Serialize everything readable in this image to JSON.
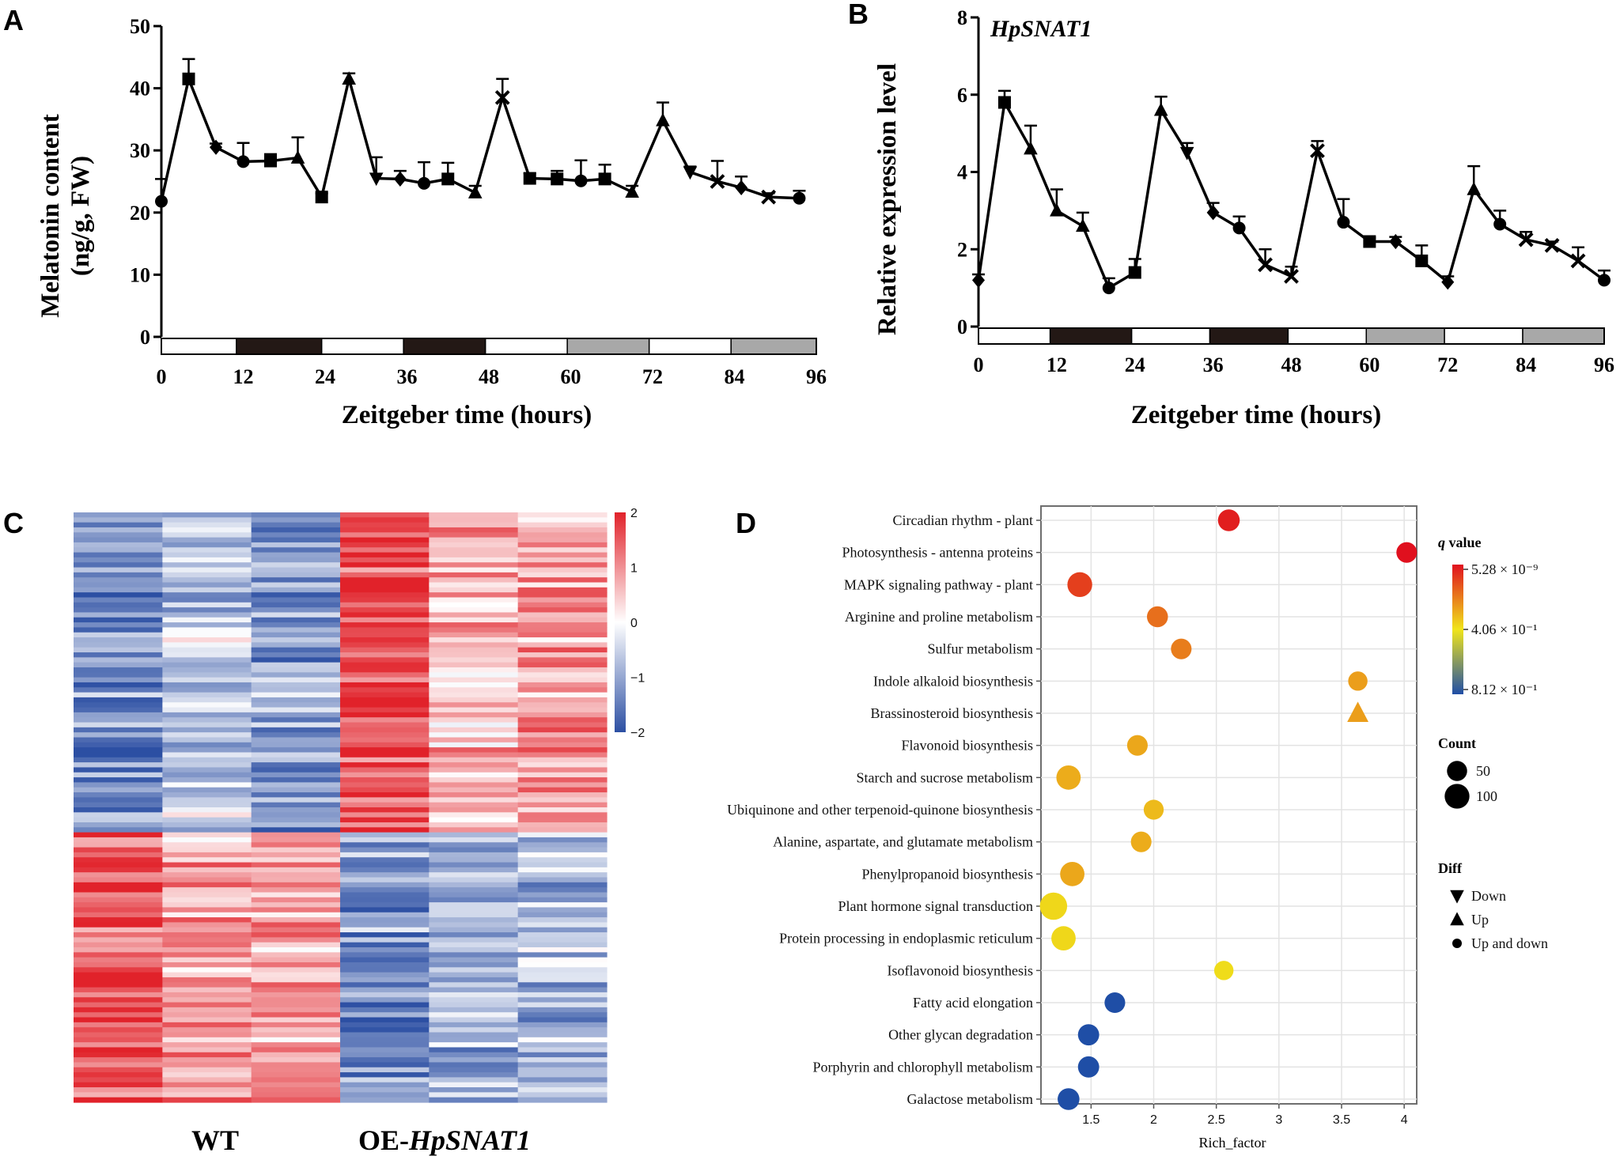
{
  "panels": {
    "A": "A",
    "B": "B",
    "C": "C",
    "D": "D"
  },
  "chart_data": [
    {
      "id": "A",
      "type": "line",
      "title": "",
      "xlabel": "Zeitgeber time (hours)",
      "ylabel_line1": "Melatonin content",
      "ylabel_line2": "(ng/g, FW)",
      "xlim": [
        0,
        96
      ],
      "ylim": [
        0,
        50
      ],
      "xticks": [
        0,
        12,
        24,
        36,
        48,
        60,
        72,
        84,
        96
      ],
      "yticks": [
        0,
        10,
        20,
        30,
        40,
        50
      ],
      "light_bar": [
        {
          "from": 0,
          "to": 11,
          "state": "light"
        },
        {
          "from": 11,
          "to": 23.5,
          "state": "dark"
        },
        {
          "from": 23.5,
          "to": 35.5,
          "state": "light"
        },
        {
          "from": 35.5,
          "to": 47.5,
          "state": "dark"
        },
        {
          "from": 47.5,
          "to": 59.5,
          "state": "light"
        },
        {
          "from": 59.5,
          "to": 71.5,
          "state": "subjective-dark"
        },
        {
          "from": 71.5,
          "to": 83.5,
          "state": "light"
        },
        {
          "from": 83.5,
          "to": 96,
          "state": "subjective-dark"
        }
      ],
      "points": [
        {
          "x": 0,
          "y": 21.8,
          "err": 3.6,
          "marker": "circle"
        },
        {
          "x": 4,
          "y": 41.5,
          "err": 3.2,
          "marker": "square"
        },
        {
          "x": 8,
          "y": 30.5,
          "err": 0.6,
          "marker": "diamond"
        },
        {
          "x": 12,
          "y": 28.2,
          "err": 3.0,
          "marker": "circle"
        },
        {
          "x": 16,
          "y": 28.3,
          "err": 1.1,
          "marker": "square"
        },
        {
          "x": 20,
          "y": 28.8,
          "err": 3.3,
          "marker": "triangle-up"
        },
        {
          "x": 23.5,
          "y": 22.5,
          "err": 0.6,
          "marker": "square"
        },
        {
          "x": 27.5,
          "y": 41.5,
          "err": 0.9,
          "marker": "triangle-up"
        },
        {
          "x": 31.5,
          "y": 25.5,
          "err": 3.4,
          "marker": "triangle-down"
        },
        {
          "x": 35,
          "y": 25.4,
          "err": 1.3,
          "marker": "diamond"
        },
        {
          "x": 38.5,
          "y": 24.7,
          "err": 3.4,
          "marker": "circle"
        },
        {
          "x": 42,
          "y": 25.4,
          "err": 2.6,
          "marker": "square"
        },
        {
          "x": 46,
          "y": 23.2,
          "err": 1.1,
          "marker": "triangle-up"
        },
        {
          "x": 50,
          "y": 38.5,
          "err": 3.0,
          "marker": "x"
        },
        {
          "x": 54,
          "y": 25.5,
          "err": 0.8,
          "marker": "square"
        },
        {
          "x": 58,
          "y": 25.4,
          "err": 1.3,
          "marker": "square"
        },
        {
          "x": 61.5,
          "y": 25.1,
          "err": 3.3,
          "marker": "circle"
        },
        {
          "x": 65,
          "y": 25.4,
          "err": 2.3,
          "marker": "square"
        },
        {
          "x": 69,
          "y": 23.3,
          "err": 1.0,
          "marker": "triangle-up"
        },
        {
          "x": 73.5,
          "y": 34.8,
          "err": 2.9,
          "marker": "triangle-up"
        },
        {
          "x": 77.5,
          "y": 26.5,
          "err": 0.9,
          "marker": "triangle-down"
        },
        {
          "x": 81.5,
          "y": 25.0,
          "err": 3.3,
          "marker": "x"
        },
        {
          "x": 85,
          "y": 24.0,
          "err": 1.8,
          "marker": "diamond"
        },
        {
          "x": 89,
          "y": 22.5,
          "err": 0.6,
          "marker": "x"
        },
        {
          "x": 93.5,
          "y": 22.3,
          "err": 1.2,
          "marker": "circle"
        }
      ]
    },
    {
      "id": "B",
      "type": "line",
      "title": "HpSNAT1",
      "xlabel": "Zeitgeber time (hours)",
      "ylabel": "Relative expression level",
      "xlim": [
        0,
        96
      ],
      "ylim": [
        0,
        8
      ],
      "xticks": [
        0,
        12,
        24,
        36,
        48,
        60,
        72,
        84,
        96
      ],
      "yticks": [
        0,
        2,
        4,
        6,
        8
      ],
      "light_bar": [
        {
          "from": 0,
          "to": 11,
          "state": "light"
        },
        {
          "from": 11,
          "to": 23.5,
          "state": "dark"
        },
        {
          "from": 23.5,
          "to": 35.5,
          "state": "light"
        },
        {
          "from": 35.5,
          "to": 47.5,
          "state": "dark"
        },
        {
          "from": 47.5,
          "to": 59.5,
          "state": "light"
        },
        {
          "from": 59.5,
          "to": 71.5,
          "state": "subjective-dark"
        },
        {
          "from": 71.5,
          "to": 83.5,
          "state": "light"
        },
        {
          "from": 83.5,
          "to": 96,
          "state": "subjective-dark"
        }
      ],
      "points": [
        {
          "x": 0,
          "y": 1.2,
          "err": 0.15,
          "marker": "diamond"
        },
        {
          "x": 4,
          "y": 5.8,
          "err": 0.3,
          "marker": "square"
        },
        {
          "x": 8,
          "y": 4.6,
          "err": 0.6,
          "marker": "triangle-up"
        },
        {
          "x": 12,
          "y": 3.0,
          "err": 0.55,
          "marker": "triangle-up"
        },
        {
          "x": 16,
          "y": 2.6,
          "err": 0.35,
          "marker": "triangle-up"
        },
        {
          "x": 20,
          "y": 1.0,
          "err": 0.25,
          "marker": "circle"
        },
        {
          "x": 24,
          "y": 1.4,
          "err": 0.35,
          "marker": "square"
        },
        {
          "x": 28,
          "y": 5.6,
          "err": 0.35,
          "marker": "triangle-up"
        },
        {
          "x": 32,
          "y": 4.5,
          "err": 0.25,
          "marker": "triangle-down"
        },
        {
          "x": 36,
          "y": 2.95,
          "err": 0.25,
          "marker": "diamond"
        },
        {
          "x": 40,
          "y": 2.55,
          "err": 0.3,
          "marker": "circle"
        },
        {
          "x": 44,
          "y": 1.6,
          "err": 0.4,
          "marker": "x"
        },
        {
          "x": 48,
          "y": 1.3,
          "err": 0.25,
          "marker": "x"
        },
        {
          "x": 52,
          "y": 4.55,
          "err": 0.25,
          "marker": "x"
        },
        {
          "x": 56,
          "y": 2.7,
          "err": 0.6,
          "marker": "circle"
        },
        {
          "x": 60,
          "y": 2.2,
          "err": 0.1,
          "marker": "square"
        },
        {
          "x": 64,
          "y": 2.2,
          "err": 0.12,
          "marker": "diamond"
        },
        {
          "x": 68,
          "y": 1.7,
          "err": 0.4,
          "marker": "square"
        },
        {
          "x": 72,
          "y": 1.15,
          "err": 0.15,
          "marker": "diamond"
        },
        {
          "x": 76,
          "y": 3.55,
          "err": 0.6,
          "marker": "triangle-up"
        },
        {
          "x": 80,
          "y": 2.65,
          "err": 0.35,
          "marker": "circle"
        },
        {
          "x": 84,
          "y": 2.25,
          "err": 0.2,
          "marker": "x"
        },
        {
          "x": 88,
          "y": 2.1,
          "err": 0.1,
          "marker": "x"
        },
        {
          "x": 92,
          "y": 1.7,
          "err": 0.35,
          "marker": "x"
        },
        {
          "x": 96,
          "y": 1.2,
          "err": 0.25,
          "marker": "circle"
        }
      ]
    },
    {
      "id": "C",
      "type": "heatmap",
      "columns": 6,
      "rows_shown": 118,
      "group_labels": [
        {
          "text": "WT",
          "italic": ""
        },
        {
          "text": "OE-",
          "italic": "HpSNAT1"
        }
      ],
      "colorbar": {
        "min": -2,
        "max": 2,
        "ticks": [
          "2",
          "1",
          "0",
          "−1",
          "−2"
        ],
        "low": "#2c4fa3",
        "mid": "#ffffff",
        "high": "#e1222a"
      },
      "cluster_split_fraction": 0.54,
      "cluster_means": [
        [
          -1.2,
          -0.6,
          -1.0,
          1.6,
          0.6,
          0.9
        ],
        [
          1.5,
          0.9,
          0.8,
          -1.2,
          -0.8,
          -0.8
        ]
      ]
    },
    {
      "id": "D",
      "type": "scatter",
      "xlabel": "Rich_factor",
      "xlim": [
        1.1,
        4.1
      ],
      "xticks": [
        "1.5",
        "2",
        "2.5",
        "3",
        "3.5",
        "4"
      ],
      "legend_qvalue_title_italic": "q",
      "legend_qvalue_title_rest": " value",
      "qvalue_labels": [
        "5.28 × 10⁻⁹",
        "4.06 × 10⁻¹",
        "8.12 × 10⁻¹"
      ],
      "colors": {
        "high": "#e0101e",
        "mid": "#f0e51a",
        "low": "#1f4ea6"
      },
      "legend_count_title": "Count",
      "legend_count": [
        {
          "label": "50",
          "count": 50
        },
        {
          "label": "100",
          "count": 100
        }
      ],
      "legend_diff_title": "Diff",
      "legend_diff": [
        {
          "label": "Down",
          "marker": "triangle-down"
        },
        {
          "label": "Up",
          "marker": "triangle-up"
        },
        {
          "label": "Up and down",
          "marker": "circle"
        }
      ],
      "terms": [
        {
          "name": "Circadian rhythm - plant",
          "rich": 2.6,
          "q": 0.03,
          "count": 55,
          "diff": "circle"
        },
        {
          "name": "Photosynthesis - antenna proteins",
          "rich": 4.02,
          "q": 0.0,
          "count": 45,
          "diff": "circle"
        },
        {
          "name": "MAPK signaling pathway - plant",
          "rich": 1.41,
          "q": 0.1,
          "count": 85,
          "diff": "circle"
        },
        {
          "name": "Arginine and proline metabolism",
          "rich": 2.03,
          "q": 0.2,
          "count": 48,
          "diff": "circle"
        },
        {
          "name": "Sulfur metabolism",
          "rich": 2.22,
          "q": 0.23,
          "count": 45,
          "diff": "circle"
        },
        {
          "name": "Indole alkaloid biosynthesis",
          "rich": 3.63,
          "q": 0.3,
          "count": 35,
          "diff": "circle"
        },
        {
          "name": "Brassinosteroid biosynthesis",
          "rich": 3.63,
          "q": 0.3,
          "count": 35,
          "diff": "triangle-up"
        },
        {
          "name": "Flavonoid biosynthesis",
          "rich": 1.87,
          "q": 0.32,
          "count": 45,
          "diff": "circle"
        },
        {
          "name": "Starch and sucrose metabolism",
          "rich": 1.32,
          "q": 0.33,
          "count": 80,
          "diff": "circle"
        },
        {
          "name": "Ubiquinone and other terpenoid-quinone biosynthesis",
          "rich": 2.0,
          "q": 0.36,
          "count": 40,
          "diff": "circle"
        },
        {
          "name": "Alanine, aspartate, and glutamate metabolism",
          "rich": 1.9,
          "q": 0.33,
          "count": 45,
          "diff": "circle"
        },
        {
          "name": "Phenylpropanoid biosynthesis",
          "rich": 1.35,
          "q": 0.32,
          "count": 80,
          "diff": "circle"
        },
        {
          "name": "Plant hormone signal transduction",
          "rich": 1.2,
          "q": 0.42,
          "count": 115,
          "diff": "circle"
        },
        {
          "name": "Protein processing in endoplasmic reticulum",
          "rich": 1.28,
          "q": 0.42,
          "count": 80,
          "diff": "circle"
        },
        {
          "name": "Isoflavonoid biosynthesis",
          "rich": 2.56,
          "q": 0.43,
          "count": 35,
          "diff": "circle"
        },
        {
          "name": "Fatty acid elongation",
          "rich": 1.69,
          "q": 0.8,
          "count": 45,
          "diff": "circle"
        },
        {
          "name": "Other glycan degradation",
          "rich": 1.48,
          "q": 0.8,
          "count": 50,
          "diff": "circle"
        },
        {
          "name": "Porphyrin and chlorophyll metabolism",
          "rich": 1.48,
          "q": 0.8,
          "count": 50,
          "diff": "circle"
        },
        {
          "name": "Galactose metabolism",
          "rich": 1.32,
          "q": 0.8,
          "count": 55,
          "diff": "circle"
        }
      ]
    }
  ]
}
